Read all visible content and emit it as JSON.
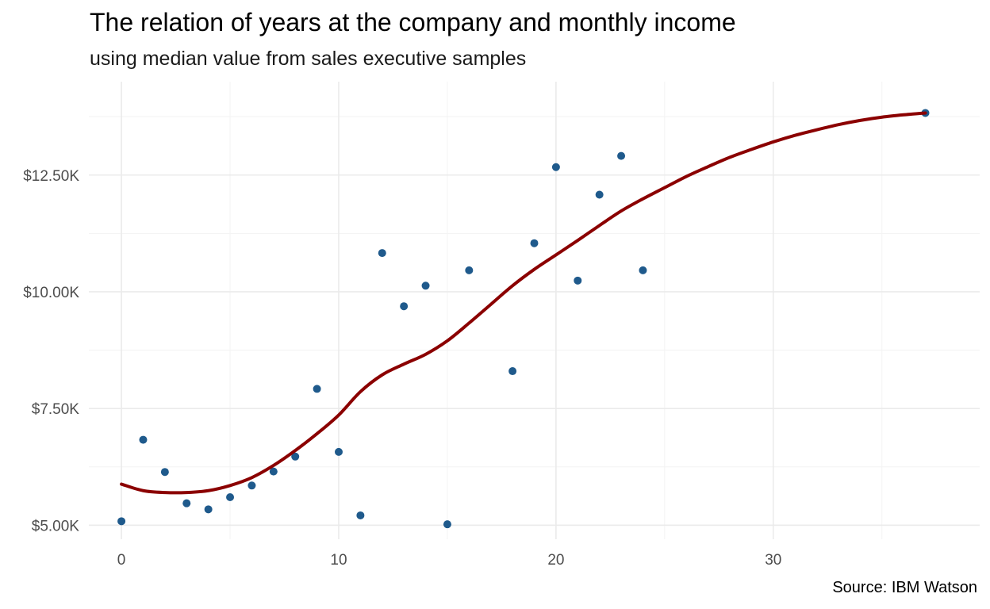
{
  "chart_data": {
    "type": "scatter",
    "title": "The relation of years at the company and monthly income",
    "subtitle": "using median value from sales executive samples",
    "caption": "Source: IBM Watson",
    "xlabel": "",
    "ylabel": "",
    "xlim": [
      -1.5,
      39.5
    ],
    "ylim": [
      4700,
      14500
    ],
    "x_ticks": [
      0,
      10,
      20,
      30
    ],
    "x_tick_labels": [
      "0",
      "10",
      "20",
      "30"
    ],
    "y_ticks": [
      5000,
      7500,
      10000,
      12500
    ],
    "y_tick_labels": [
      "$5.00K",
      "$7.50K",
      "$10.00K",
      "$12.50K"
    ],
    "grid": true,
    "point_color": "#1f5a8c",
    "trend_color": "#8b0000",
    "points": {
      "x": [
        0,
        1,
        2,
        3,
        4,
        5,
        6,
        7,
        8,
        9,
        10,
        11,
        12,
        13,
        14,
        15,
        16,
        18,
        19,
        20,
        21,
        22,
        23,
        24,
        37
      ],
      "y": [
        5085,
        6830,
        6140,
        5470,
        5340,
        5600,
        5850,
        6150,
        6470,
        7920,
        6570,
        5210,
        10830,
        9690,
        10130,
        5020,
        10460,
        8300,
        11040,
        12670,
        10240,
        12080,
        12910,
        10460,
        13830
      ]
    },
    "trend": {
      "x": [
        0,
        1,
        2,
        3,
        4,
        5,
        6,
        7,
        8,
        9,
        10,
        11,
        12,
        13,
        14,
        15,
        16,
        17,
        18,
        19,
        20,
        21,
        22,
        23,
        24,
        25,
        26,
        27,
        28,
        29,
        30,
        31,
        32,
        33,
        34,
        35,
        36,
        37
      ],
      "y": [
        5880,
        5740,
        5700,
        5700,
        5740,
        5850,
        6020,
        6280,
        6600,
        6960,
        7360,
        7860,
        8220,
        8450,
        8660,
        8950,
        9330,
        9730,
        10130,
        10480,
        10790,
        11100,
        11420,
        11730,
        11990,
        12230,
        12470,
        12680,
        12880,
        13050,
        13210,
        13350,
        13470,
        13580,
        13670,
        13740,
        13790,
        13830
      ]
    }
  }
}
